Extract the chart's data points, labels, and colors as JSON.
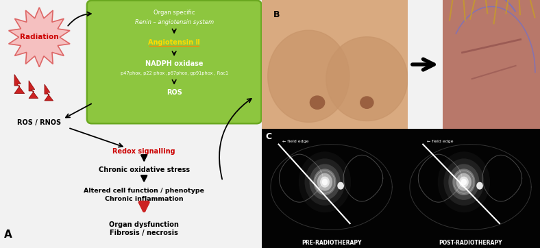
{
  "bg_color": "#f2f2f2",
  "panel_a": {
    "radiation_label": "Radiation",
    "radiation_burst_color": "#f5c0c0",
    "radiation_burst_edge": "#dd6666",
    "bolt_color": "#cc2222",
    "ros_rnos_label": "ROS / RNOS",
    "green_box_color": "#8dc63f",
    "green_box_edge": "#6aa820",
    "organ_specific_line1": "Organ specific",
    "organ_specific_line2": "Renin – angiotensin system",
    "angiotensin_label": "Angiotensin Ⅱ",
    "angiotensin_color": "#ffcc00",
    "nadph_label": "NADPH oxidase",
    "nadph_subunits": "p47phox, p22 phox ,p67phox, gp91phox , Rac1",
    "ros_label": "ROS",
    "redox_label": "Redox signalling",
    "redox_color": "#cc0000",
    "chronic_ox_label": "Chronic oxidative stress",
    "altered_cell_line1": "Altered cell function / phenotype",
    "altered_cell_line2": "Chronic inflammation",
    "organ_dysfunc_line1": "Organ dysfunction",
    "organ_dysfunc_line2": "Fibrosis / necrosis",
    "a_label": "A"
  },
  "panel_b": {
    "b_label": "B",
    "arrow_color": "#111111",
    "before_border": "#ddcc44",
    "after_border": "#cccccc"
  },
  "panel_c": {
    "c_label": "C",
    "bg_color": "#000000",
    "pre_label": "PRE-RADIOTHERAPY",
    "post_label": "POST-RADIOTHERAPY",
    "field_edge_label": "← field edge",
    "label_color": "#ffffff"
  }
}
